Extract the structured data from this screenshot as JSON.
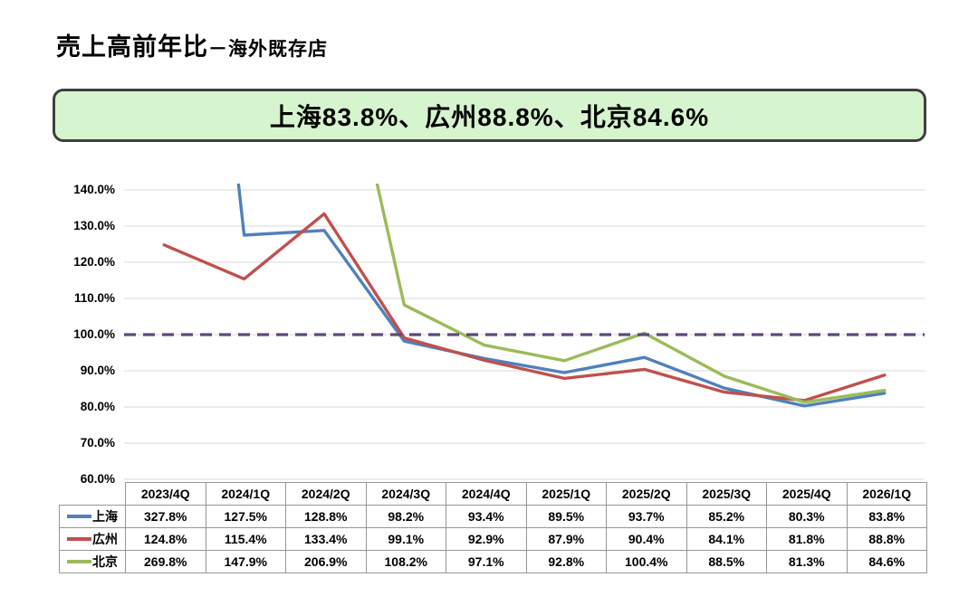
{
  "page": {
    "title_main": "売上高前年比",
    "title_suffix": "－海外既存店"
  },
  "highlight_banner": {
    "text": "上海83.8%、広州88.8%、北京84.6%",
    "bg_color": "#d6f4ce",
    "border_color": "#3f3f3f"
  },
  "chart_data": {
    "type": "line",
    "title": "売上高前年比－海外既存店",
    "categories": [
      "2023/4Q",
      "2024/1Q",
      "2024/2Q",
      "2024/3Q",
      "2024/4Q",
      "2025/1Q",
      "2025/2Q",
      "2025/3Q",
      "2025/4Q",
      "2026/1Q"
    ],
    "series": [
      {
        "name": "上海",
        "color": "#4F81BD",
        "values": [
          327.8,
          127.5,
          128.8,
          98.2,
          93.4,
          89.5,
          93.7,
          85.2,
          80.3,
          83.8
        ]
      },
      {
        "name": "広州",
        "color": "#C0504D",
        "values": [
          124.8,
          115.4,
          133.4,
          99.1,
          92.9,
          87.9,
          90.4,
          84.1,
          81.8,
          88.8
        ]
      },
      {
        "name": "北京",
        "color": "#9BBB59",
        "values": [
          269.8,
          147.9,
          206.9,
          108.2,
          97.1,
          92.8,
          100.4,
          88.5,
          81.3,
          84.6
        ]
      }
    ],
    "ylim": [
      60,
      140
    ],
    "y_tick_labels": [
      "140.0%",
      "130.0%",
      "120.0%",
      "110.0%",
      "100.0%",
      "90.0%",
      "80.0%",
      "70.0%",
      "60.0%"
    ],
    "reference_line": {
      "value": 100,
      "color": "#5F497A",
      "style": "dashed"
    },
    "gridline_color": "#d9d9d9",
    "grid": "horizontal",
    "legend_position": "table-left",
    "table_border_color": "#969696"
  }
}
